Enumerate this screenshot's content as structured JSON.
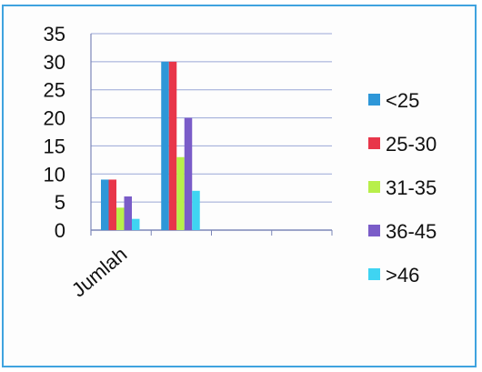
{
  "chart_data": {
    "type": "bar",
    "categories": [
      "Jumlah",
      "",
      "",
      ""
    ],
    "series": [
      {
        "name": "<25",
        "values": [
          9,
          30,
          null,
          null
        ],
        "color": "#2e97d8"
      },
      {
        "name": "25-30",
        "values": [
          9,
          30,
          null,
          null
        ],
        "color": "#e8364a"
      },
      {
        "name": "31-35",
        "values": [
          4,
          13,
          null,
          null
        ],
        "color": "#b8ef4a"
      },
      {
        "name": "36-45",
        "values": [
          6,
          20,
          null,
          null
        ],
        "color": "#7a5cc8"
      },
      {
        "name": ">46",
        "values": [
          2,
          7,
          null,
          null
        ],
        "color": "#3fd4f2"
      }
    ],
    "yticks": [
      "35",
      "30",
      "25",
      "20",
      "15",
      "10",
      "5",
      "0"
    ],
    "ylim": [
      0,
      35
    ],
    "grid": true,
    "legend_position": "right",
    "frame_color": "#3fa3df"
  }
}
